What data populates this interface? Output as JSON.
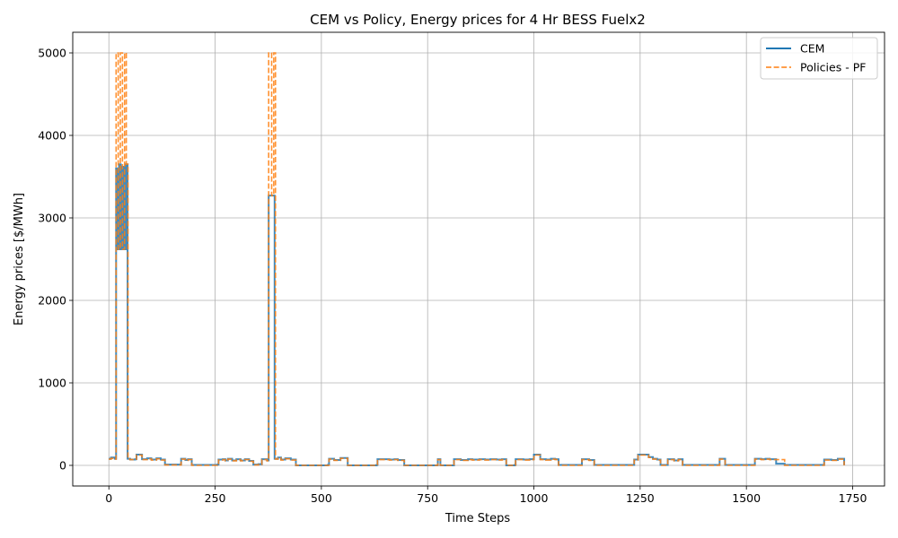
{
  "chart_data": {
    "type": "line",
    "title": "CEM vs Policy, Energy prices for 4 Hr BESS Fuelx2",
    "xlabel": "Time Steps",
    "ylabel": "Energy prices [$/MWh]",
    "xlim": [
      -85,
      1825
    ],
    "ylim": [
      -250,
      5250
    ],
    "xticks": [
      0,
      250,
      500,
      750,
      1000,
      1250,
      1500,
      1750
    ],
    "yticks": [
      0,
      1000,
      2000,
      3000,
      4000,
      5000
    ],
    "grid": true,
    "legend_position": "top-right",
    "series": [
      {
        "name": "CEM",
        "color": "#1f77b4",
        "style": "solid",
        "points": [
          [
            0,
            80
          ],
          [
            5,
            95
          ],
          [
            14,
            80
          ],
          [
            17,
            3600
          ],
          [
            20,
            2620
          ],
          [
            24,
            3650
          ],
          [
            28,
            2620
          ],
          [
            32,
            3620
          ],
          [
            36,
            2620
          ],
          [
            40,
            3650
          ],
          [
            44,
            80
          ],
          [
            50,
            70
          ],
          [
            62,
            75
          ],
          [
            65,
            130
          ],
          [
            78,
            75
          ],
          [
            90,
            85
          ],
          [
            100,
            70
          ],
          [
            112,
            85
          ],
          [
            122,
            70
          ],
          [
            132,
            10
          ],
          [
            170,
            80
          ],
          [
            180,
            65
          ],
          [
            186,
            75
          ],
          [
            195,
            5
          ],
          [
            255,
            10
          ],
          [
            258,
            70
          ],
          [
            268,
            75
          ],
          [
            274,
            60
          ],
          [
            280,
            80
          ],
          [
            290,
            60
          ],
          [
            300,
            75
          ],
          [
            310,
            60
          ],
          [
            320,
            75
          ],
          [
            330,
            55
          ],
          [
            340,
            10
          ],
          [
            352,
            15
          ],
          [
            360,
            75
          ],
          [
            372,
            60
          ],
          [
            376,
            3270
          ],
          [
            390,
            80
          ],
          [
            398,
            95
          ],
          [
            405,
            70
          ],
          [
            415,
            85
          ],
          [
            428,
            70
          ],
          [
            440,
            0
          ],
          [
            515,
            5
          ],
          [
            518,
            80
          ],
          [
            530,
            65
          ],
          [
            545,
            90
          ],
          [
            562,
            0
          ],
          [
            630,
            5
          ],
          [
            632,
            75
          ],
          [
            660,
            70
          ],
          [
            672,
            75
          ],
          [
            680,
            65
          ],
          [
            695,
            0
          ],
          [
            770,
            0
          ],
          [
            774,
            75
          ],
          [
            780,
            0
          ],
          [
            810,
            0
          ],
          [
            812,
            75
          ],
          [
            828,
            65
          ],
          [
            845,
            75
          ],
          [
            855,
            70
          ],
          [
            872,
            75
          ],
          [
            885,
            70
          ],
          [
            898,
            75
          ],
          [
            912,
            70
          ],
          [
            925,
            75
          ],
          [
            935,
            0
          ],
          [
            955,
            5
          ],
          [
            957,
            75
          ],
          [
            975,
            70
          ],
          [
            990,
            75
          ],
          [
            1000,
            130
          ],
          [
            1015,
            75
          ],
          [
            1028,
            70
          ],
          [
            1040,
            80
          ],
          [
            1050,
            75
          ],
          [
            1058,
            5
          ],
          [
            1110,
            5
          ],
          [
            1113,
            75
          ],
          [
            1130,
            65
          ],
          [
            1142,
            5
          ],
          [
            1205,
            5
          ],
          [
            1236,
            70
          ],
          [
            1245,
            130
          ],
          [
            1262,
            130
          ],
          [
            1270,
            100
          ],
          [
            1280,
            80
          ],
          [
            1290,
            70
          ],
          [
            1298,
            5
          ],
          [
            1315,
            75
          ],
          [
            1330,
            60
          ],
          [
            1340,
            75
          ],
          [
            1350,
            5
          ],
          [
            1435,
            5
          ],
          [
            1437,
            80
          ],
          [
            1450,
            5
          ],
          [
            1515,
            5
          ],
          [
            1520,
            80
          ],
          [
            1535,
            75
          ],
          [
            1545,
            80
          ],
          [
            1555,
            75
          ],
          [
            1565,
            75
          ],
          [
            1570,
            20
          ],
          [
            1590,
            5
          ],
          [
            1680,
            5
          ],
          [
            1683,
            70
          ],
          [
            1700,
            65
          ],
          [
            1715,
            80
          ],
          [
            1730,
            5
          ]
        ]
      },
      {
        "name": "Policies - PF",
        "color": "#ff7f0e",
        "style": "dashed",
        "points": [
          [
            0,
            75
          ],
          [
            5,
            85
          ],
          [
            14,
            75
          ],
          [
            17,
            5000
          ],
          [
            22,
            2620
          ],
          [
            27,
            5000
          ],
          [
            32,
            2620
          ],
          [
            37,
            5000
          ],
          [
            41,
            3650
          ],
          [
            45,
            75
          ],
          [
            50,
            70
          ],
          [
            62,
            75
          ],
          [
            65,
            125
          ],
          [
            78,
            70
          ],
          [
            90,
            80
          ],
          [
            100,
            65
          ],
          [
            112,
            80
          ],
          [
            122,
            65
          ],
          [
            132,
            5
          ],
          [
            170,
            75
          ],
          [
            180,
            60
          ],
          [
            186,
            70
          ],
          [
            195,
            0
          ],
          [
            255,
            5
          ],
          [
            258,
            65
          ],
          [
            268,
            70
          ],
          [
            274,
            55
          ],
          [
            280,
            75
          ],
          [
            290,
            55
          ],
          [
            300,
            70
          ],
          [
            310,
            55
          ],
          [
            320,
            70
          ],
          [
            330,
            50
          ],
          [
            340,
            5
          ],
          [
            352,
            10
          ],
          [
            360,
            70
          ],
          [
            372,
            55
          ],
          [
            376,
            5000
          ],
          [
            383,
            3270
          ],
          [
            388,
            5000
          ],
          [
            392,
            75
          ],
          [
            398,
            90
          ],
          [
            405,
            65
          ],
          [
            415,
            80
          ],
          [
            428,
            65
          ],
          [
            440,
            0
          ],
          [
            515,
            0
          ],
          [
            518,
            75
          ],
          [
            530,
            60
          ],
          [
            545,
            85
          ],
          [
            562,
            0
          ],
          [
            630,
            0
          ],
          [
            632,
            70
          ],
          [
            660,
            65
          ],
          [
            672,
            70
          ],
          [
            680,
            60
          ],
          [
            695,
            0
          ],
          [
            770,
            0
          ],
          [
            774,
            70
          ],
          [
            780,
            0
          ],
          [
            810,
            0
          ],
          [
            812,
            70
          ],
          [
            828,
            60
          ],
          [
            845,
            70
          ],
          [
            855,
            65
          ],
          [
            872,
            70
          ],
          [
            885,
            65
          ],
          [
            898,
            70
          ],
          [
            912,
            65
          ],
          [
            925,
            70
          ],
          [
            935,
            0
          ],
          [
            955,
            0
          ],
          [
            957,
            70
          ],
          [
            975,
            65
          ],
          [
            990,
            70
          ],
          [
            1000,
            125
          ],
          [
            1015,
            70
          ],
          [
            1028,
            65
          ],
          [
            1040,
            75
          ],
          [
            1050,
            70
          ],
          [
            1058,
            0
          ],
          [
            1110,
            0
          ],
          [
            1113,
            70
          ],
          [
            1130,
            60
          ],
          [
            1142,
            0
          ],
          [
            1205,
            0
          ],
          [
            1236,
            65
          ],
          [
            1245,
            125
          ],
          [
            1262,
            125
          ],
          [
            1270,
            95
          ],
          [
            1280,
            75
          ],
          [
            1290,
            65
          ],
          [
            1298,
            0
          ],
          [
            1315,
            70
          ],
          [
            1330,
            55
          ],
          [
            1340,
            70
          ],
          [
            1350,
            0
          ],
          [
            1435,
            0
          ],
          [
            1437,
            75
          ],
          [
            1450,
            0
          ],
          [
            1515,
            0
          ],
          [
            1520,
            75
          ],
          [
            1535,
            70
          ],
          [
            1545,
            75
          ],
          [
            1555,
            70
          ],
          [
            1565,
            70
          ],
          [
            1575,
            70
          ],
          [
            1590,
            0
          ],
          [
            1680,
            0
          ],
          [
            1683,
            65
          ],
          [
            1700,
            60
          ],
          [
            1715,
            75
          ],
          [
            1730,
            0
          ]
        ]
      }
    ]
  }
}
